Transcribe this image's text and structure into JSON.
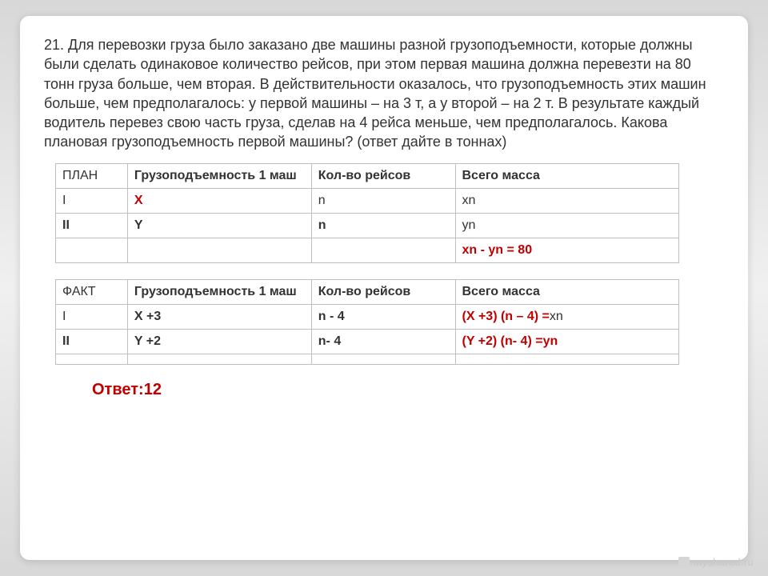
{
  "problem": {
    "text": "21. Для перевозки груза было заказано две машины разной грузоподъемности, которые должны были сделать одинаковое количество рейсов, при этом первая машина должна перевезти на 80 тонн груза больше, чем вторая. В действительности оказалось, что грузоподъемность этих машин больше, чем предполагалось: у первой машины – на 3 т, а у второй – на 2 т. В результате каждый водитель перевез свою часть груза, сделав на 4 рейса меньше, чем предполагалось. Какова плановая грузоподъемность  первой  машины? (ответ дайте в тоннах)"
  },
  "table1": {
    "h1": "ПЛАН",
    "h2": "Грузоподъемность 1 маш",
    "h3": "Кол-во рейсов",
    "h4": "Всего масса",
    "r1c1": "I",
    "r1c2": "X",
    "r1c3": "n",
    "r1c4": "xn",
    "r2c1": "II",
    "r2c2": "Y",
    "r2c3": "n",
    "r2c4": "yn",
    "r3c4": "xn  - yn = 80"
  },
  "table2": {
    "h1": "ФАКТ",
    "h2": "Грузоподъемность 1 маш",
    "h3": "Кол-во рейсов",
    "h4": "Всего масса",
    "r1c1": "I",
    "r1c2": "X +3",
    "r1c3": "n - 4",
    "r1c4a": "(X +3) (n – 4) =",
    "r1c4b": "xn",
    "r2c1": "II",
    "r2c2": "Y +2",
    "r2c3": "n- 4",
    "r2c4a": "(Y +2) (n- 4) =",
    "r2c4b": "yn"
  },
  "answer": "Ответ:12",
  "watermark": "myshared.ru"
}
